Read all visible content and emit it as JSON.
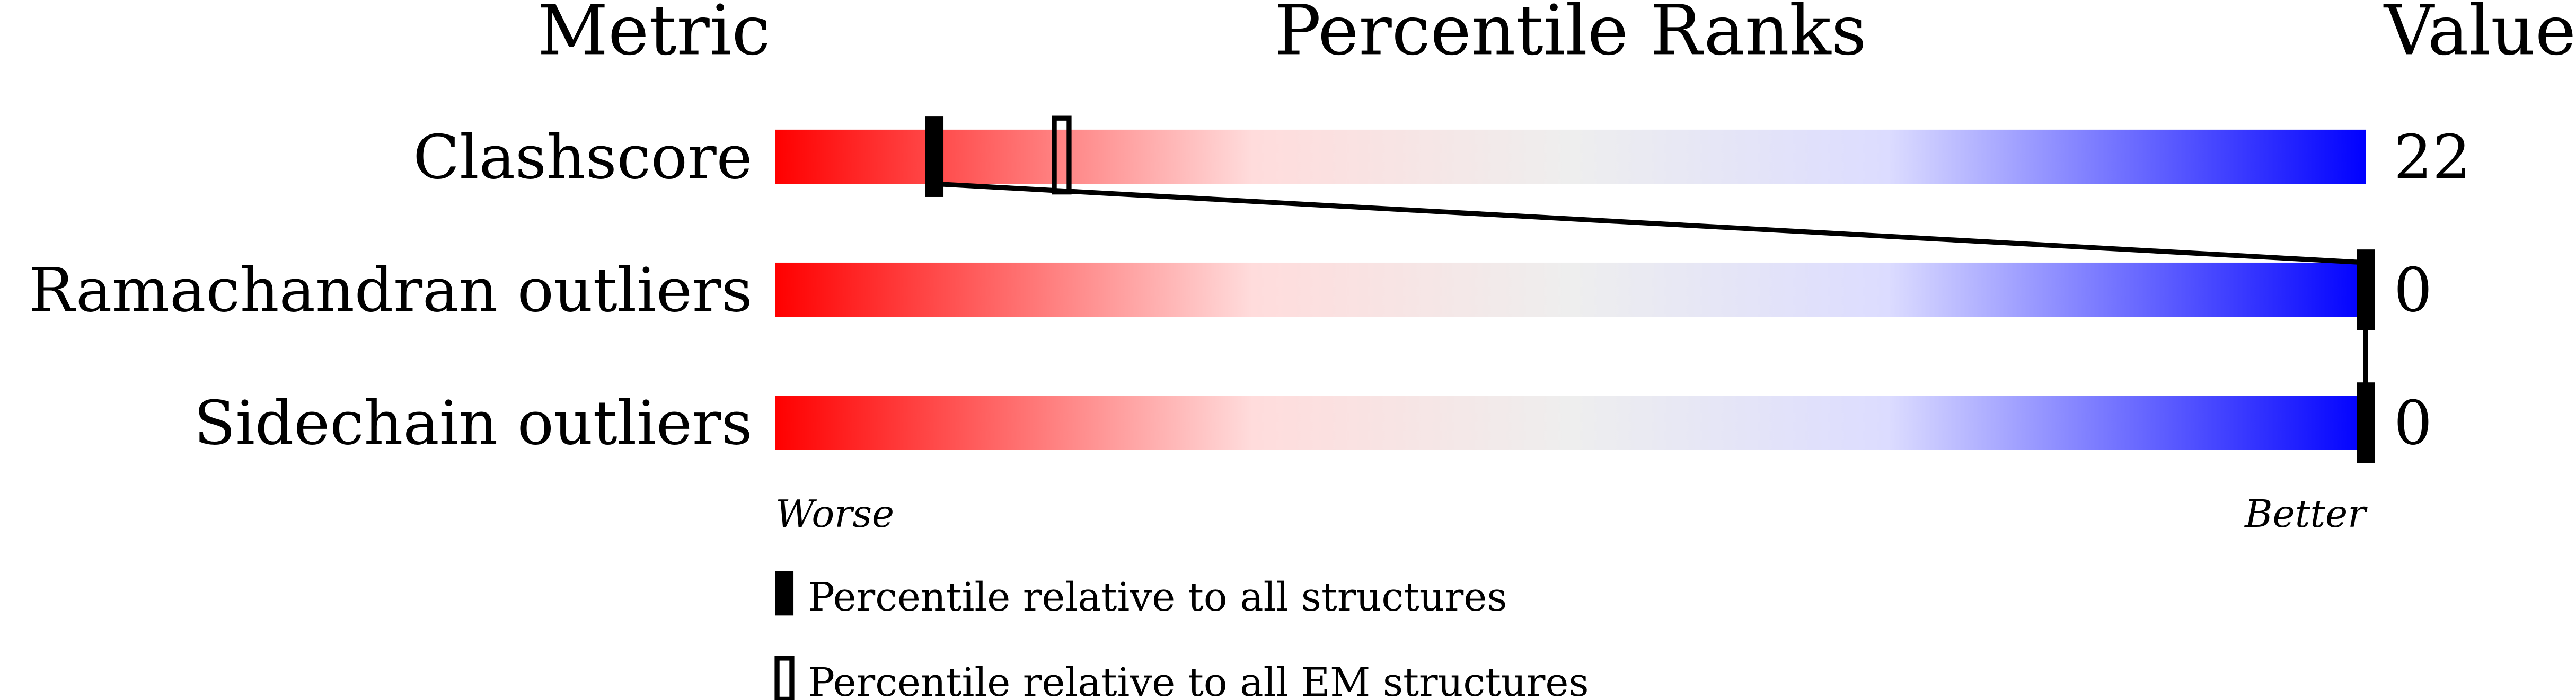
{
  "chart_data": {
    "type": "percentile-slider",
    "headers": {
      "metric": "Metric",
      "ranks": "Percentile Ranks",
      "value": "Value"
    },
    "metrics": [
      {
        "name": "Clashscore",
        "value": "22",
        "percentile_all": 10,
        "percentile_em": 18
      },
      {
        "name": "Ramachandran outliers",
        "value": "0",
        "percentile_all": 100,
        "percentile_em": 100
      },
      {
        "name": "Sidechain outliers",
        "value": "0",
        "percentile_all": 100,
        "percentile_em": 100
      }
    ],
    "axis": {
      "worse": "Worse",
      "better": "Better",
      "range": [
        0,
        100
      ]
    },
    "legend": {
      "all": "Percentile relative to all structures",
      "em": "Percentile relative to all EM structures"
    },
    "colors": {
      "worse": "#ff0000",
      "middle": "#eeeeee",
      "better": "#0000ff"
    }
  }
}
